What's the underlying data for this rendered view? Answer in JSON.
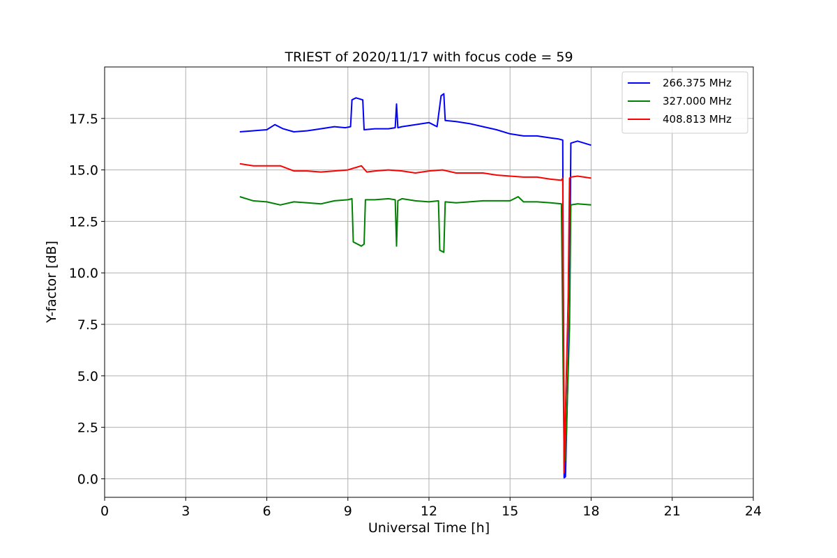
{
  "chart_data": {
    "type": "line",
    "title": "TRIEST of 2020/11/17 with focus code = 59",
    "xlabel": "Universal Time [h]",
    "ylabel": "Y-factor [dB]",
    "xlim": [
      0,
      24
    ],
    "ylim": [
      -0.9,
      20.0
    ],
    "xticks": [
      0,
      3,
      6,
      9,
      12,
      15,
      18,
      21,
      24
    ],
    "xtick_labels": [
      "0",
      "3",
      "6",
      "9",
      "12",
      "15",
      "18",
      "21",
      "24"
    ],
    "yticks": [
      0.0,
      2.5,
      5.0,
      7.5,
      10.0,
      12.5,
      15.0,
      17.5
    ],
    "ytick_labels": [
      "0.0",
      "2.5",
      "5.0",
      "7.5",
      "10.0",
      "12.5",
      "15.0",
      "17.5"
    ],
    "grid": true,
    "legend_position": "top-right",
    "series": [
      {
        "name": "266.375 MHz",
        "color": "#0000ff",
        "x": [
          5.0,
          5.5,
          6.0,
          6.3,
          6.6,
          7.0,
          7.5,
          8.0,
          8.5,
          8.9,
          9.1,
          9.15,
          9.3,
          9.55,
          9.6,
          10.0,
          10.5,
          10.75,
          10.8,
          10.85,
          11.0,
          11.5,
          12.0,
          12.3,
          12.45,
          12.55,
          12.6,
          13.0,
          13.5,
          14.0,
          14.5,
          15.0,
          15.5,
          16.0,
          16.5,
          16.8,
          16.95,
          17.0,
          17.05,
          17.2,
          17.25,
          17.5,
          18.0
        ],
        "y": [
          16.85,
          16.9,
          16.95,
          17.2,
          17.0,
          16.85,
          16.9,
          17.0,
          17.1,
          17.05,
          17.1,
          18.4,
          18.5,
          18.4,
          16.95,
          17.0,
          17.0,
          17.05,
          18.2,
          17.05,
          17.1,
          17.2,
          17.3,
          17.1,
          18.6,
          18.7,
          17.4,
          17.35,
          17.25,
          17.1,
          16.95,
          16.75,
          16.65,
          16.65,
          16.55,
          16.5,
          16.45,
          0.05,
          0.1,
          8.3,
          16.3,
          16.4,
          16.2
        ]
      },
      {
        "name": "327.000 MHz",
        "color": "#008000",
        "x": [
          5.0,
          5.5,
          6.0,
          6.5,
          7.0,
          7.5,
          8.0,
          8.5,
          9.0,
          9.15,
          9.2,
          9.5,
          9.6,
          9.65,
          10.0,
          10.5,
          10.75,
          10.8,
          10.85,
          11.0,
          11.5,
          12.0,
          12.35,
          12.4,
          12.55,
          12.6,
          13.0,
          13.5,
          14.0,
          14.5,
          15.0,
          15.3,
          15.5,
          16.0,
          16.5,
          16.9,
          17.0,
          17.05,
          17.2,
          17.25,
          17.5,
          18.0
        ],
        "y": [
          13.7,
          13.5,
          13.45,
          13.3,
          13.45,
          13.4,
          13.35,
          13.5,
          13.55,
          13.6,
          11.5,
          11.3,
          11.4,
          13.55,
          13.55,
          13.6,
          13.55,
          11.3,
          13.5,
          13.6,
          13.5,
          13.45,
          13.5,
          11.1,
          11.0,
          13.45,
          13.4,
          13.45,
          13.5,
          13.5,
          13.5,
          13.7,
          13.45,
          13.45,
          13.4,
          13.35,
          0.8,
          0.9,
          7.3,
          13.3,
          13.35,
          13.3
        ]
      },
      {
        "name": "408.813 MHz",
        "color": "#ff0000",
        "x": [
          5.0,
          5.5,
          6.0,
          6.5,
          7.0,
          7.5,
          8.0,
          8.5,
          9.0,
          9.5,
          9.7,
          10.0,
          10.5,
          11.0,
          11.5,
          12.0,
          12.5,
          13.0,
          13.5,
          14.0,
          14.5,
          15.0,
          15.5,
          16.0,
          16.5,
          16.9,
          16.95,
          17.0,
          17.05,
          17.15,
          17.2,
          17.25,
          17.5,
          18.0
        ],
        "y": [
          15.3,
          15.2,
          15.2,
          15.2,
          14.95,
          14.95,
          14.9,
          14.95,
          15.0,
          15.2,
          14.9,
          14.95,
          15.0,
          14.95,
          14.85,
          14.95,
          15.0,
          14.85,
          14.85,
          14.85,
          14.75,
          14.7,
          14.65,
          14.65,
          14.55,
          14.5,
          14.6,
          0.3,
          3.2,
          8.8,
          14.6,
          14.65,
          14.7,
          14.6
        ]
      }
    ]
  }
}
